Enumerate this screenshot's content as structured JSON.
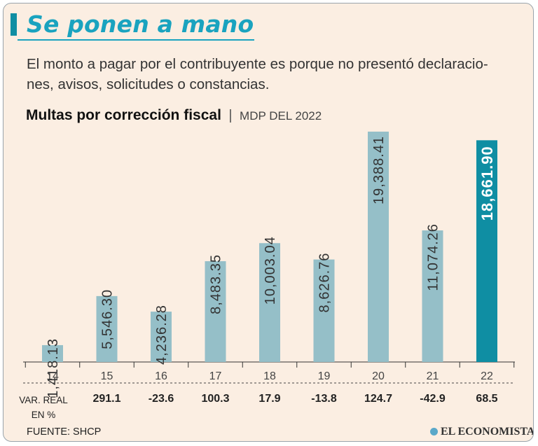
{
  "header": {
    "title": "Se ponen a mano",
    "subtitle": "El monto a pagar por el contribuyente es porque no presentó declaracio-nes, avisos, solicitudes o constancias."
  },
  "chart_head": {
    "title": "Multas por corrección fiscal",
    "separator": "|",
    "unit": "MDP DEL 2022"
  },
  "chart_data": {
    "type": "bar",
    "title": "Multas por corrección fiscal",
    "ylabel": "MDP DEL 2022",
    "xlabel": "",
    "categories": [
      "14",
      "15",
      "16",
      "17",
      "18",
      "19",
      "20",
      "21",
      "22"
    ],
    "values": [
      1418.13,
      5546.3,
      4236.28,
      8483.35,
      10003.04,
      8626.76,
      19388.41,
      11074.26,
      18661.9
    ],
    "labels": [
      "1,418.13",
      "5,546.30",
      "4,236.28",
      "8,483.35",
      "10,003.04",
      "8,626.76",
      "19,388.41",
      "11,074.26",
      "18,661.90"
    ],
    "highlight_index": 8,
    "ylim": [
      0,
      19388.41
    ],
    "colors": {
      "bar": "#95bfc8",
      "highlight": "#0f8ea3"
    }
  },
  "variation": {
    "label_line1": "VAR. REAL",
    "label_line2": "EN %",
    "values": [
      "291.1",
      "-23.6",
      "100.3",
      "17.9",
      "-13.8",
      "124.7",
      "-42.9",
      "68.5"
    ]
  },
  "footer": {
    "source": "FUENTE: SHCP",
    "brand": "EL ECONOMISTA"
  },
  "colors": {
    "accent": "#1aa3bf",
    "background": "#fbeee2"
  }
}
